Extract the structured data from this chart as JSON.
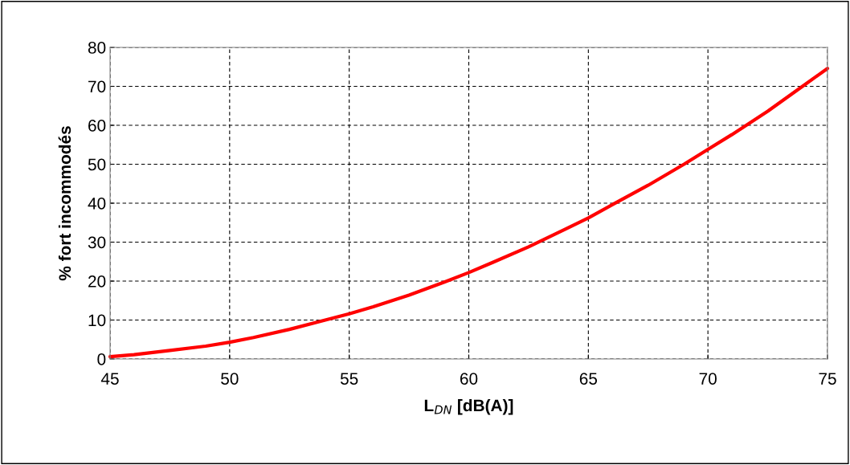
{
  "chart_data": {
    "type": "line",
    "xlabel": "L$_{DN}$ [dB(A)]",
    "ylabel": "% fort incommodés",
    "x": [
      45,
      46,
      47.5,
      49,
      50,
      51,
      52.5,
      54,
      55,
      56,
      57.5,
      59,
      60,
      61,
      62.5,
      64,
      65,
      66,
      67.5,
      69,
      70,
      71,
      72.5,
      74,
      75
    ],
    "series": [
      {
        "color": "#ff0000",
        "values": [
          0.6,
          1.1,
          2.2,
          3.3,
          4.3,
          5.5,
          7.6,
          10.0,
          11.6,
          13.4,
          16.4,
          19.8,
          22.2,
          24.8,
          28.8,
          33.2,
          36.2,
          39.6,
          44.6,
          50.0,
          53.8,
          57.6,
          63.6,
          70.2,
          74.6
        ]
      }
    ],
    "xlim": [
      45,
      75
    ],
    "xticks": [
      45,
      50,
      55,
      60,
      65,
      70,
      75
    ],
    "ylim": [
      0,
      80
    ],
    "yticks": [
      0,
      10,
      20,
      30,
      40,
      50,
      60,
      70,
      80
    ],
    "grid": true,
    "line_style": "solid",
    "marker": "none",
    "legend": false
  }
}
